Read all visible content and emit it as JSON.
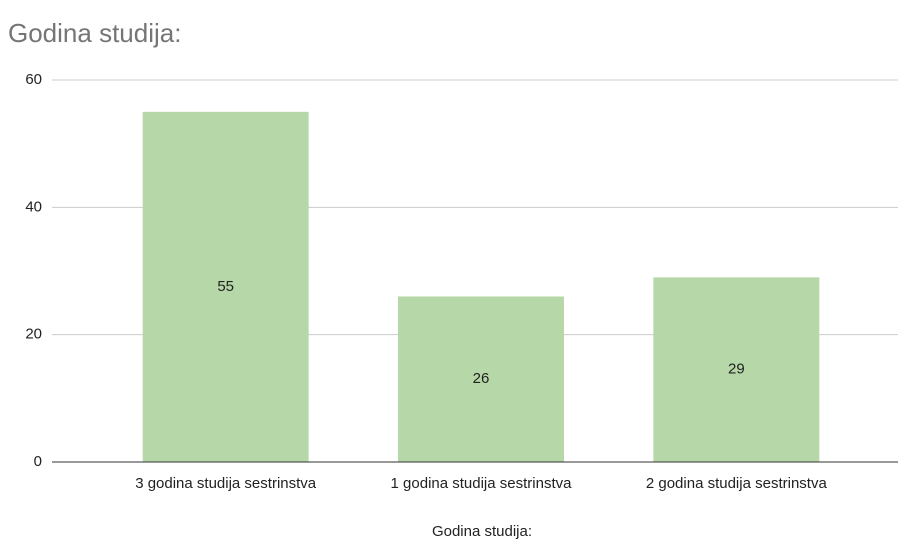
{
  "chart_data": {
    "type": "bar",
    "title": "Godina studija:",
    "x_label": "Godina studija:",
    "categories": [
      "3 godina studija sestrinstva",
      "1 godina studija sestrinstva",
      "2 godina studija sestrinstva"
    ],
    "values": [
      55,
      26,
      29
    ],
    "color": "#b6d7a8",
    "ylim": [
      0,
      60
    ],
    "yticks": [
      0,
      20,
      40,
      60
    ],
    "grid": true
  }
}
